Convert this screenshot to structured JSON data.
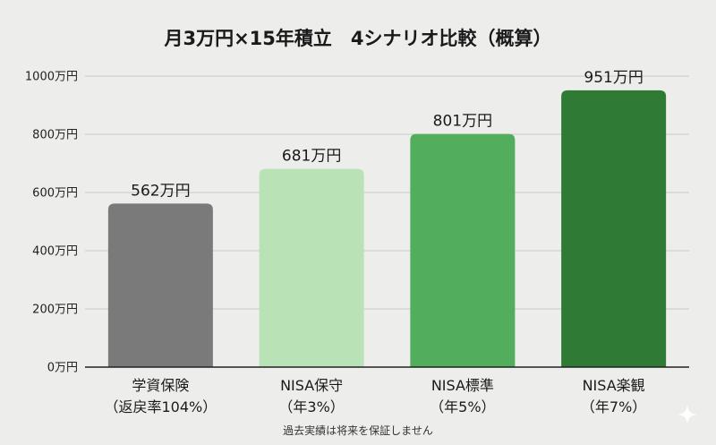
{
  "chart_data": {
    "type": "bar",
    "title": "月3万円×15年積立　4シナリオ比較（概算）",
    "categories": [
      [
        "学資保険",
        "（返戻率104%）"
      ],
      [
        "NISA保守",
        "（年3%）"
      ],
      [
        "NISA標準",
        "（年5%）"
      ],
      [
        "NISA楽観",
        "（年7%）"
      ]
    ],
    "values": [
      562,
      681,
      801,
      951
    ],
    "value_labels": [
      "562万円",
      "681万円",
      "801万円",
      "951万円"
    ],
    "colors": [
      "#7a7a7a",
      "#b9e3b6",
      "#52ad5d",
      "#2f7a35"
    ],
    "ylim": [
      0,
      1000
    ],
    "yticks": [
      0,
      200,
      400,
      600,
      800,
      1000
    ],
    "ytick_labels": [
      "0万円",
      "200万円",
      "400万円",
      "600万円",
      "800万円",
      "1000万円"
    ],
    "grid": true,
    "xlabel": "",
    "ylabel": ""
  },
  "footnote": "過去実績は将来を保証しません",
  "watermark_icon": "sparkle-icon"
}
